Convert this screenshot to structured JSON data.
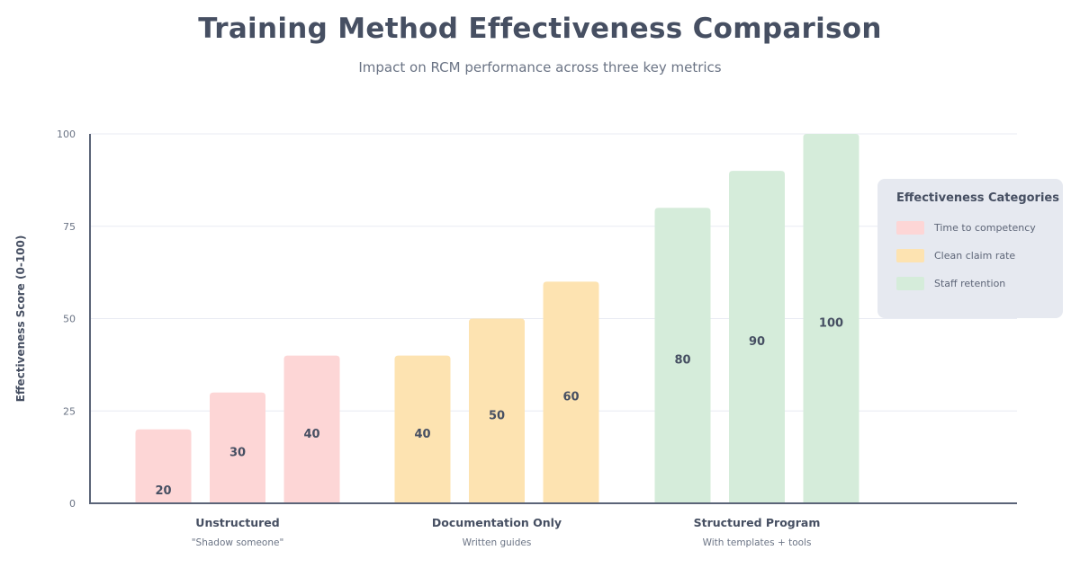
{
  "chart_data": {
    "type": "bar",
    "title": "Training Method Effectiveness Comparison",
    "subtitle": "Impact on RCM performance across three key metrics",
    "xlabel": "",
    "ylabel": "Effectiveness Score (0-100)",
    "ylim": [
      0,
      100
    ],
    "yticks": [
      "0",
      "25",
      "50",
      "75",
      "100"
    ],
    "ytick_values": [
      0,
      25,
      50,
      75,
      100
    ],
    "grid": true,
    "categories": [
      {
        "label": "Unstructured",
        "sublabel": "\"Shadow someone\"",
        "color": "#fdd6d6",
        "values": [
          20,
          30,
          40
        ]
      },
      {
        "label": "Documentation Only",
        "sublabel": "Written guides",
        "color": "#fde3b1",
        "values": [
          40,
          50,
          60
        ]
      },
      {
        "label": "Structured Program",
        "sublabel": "With templates + tools",
        "color": "#d5ecda",
        "values": [
          80,
          90,
          100
        ]
      }
    ],
    "series": [
      {
        "name": "Time to competency",
        "color": "#fdd6d6"
      },
      {
        "name": "Clean claim rate",
        "color": "#fde3b1"
      },
      {
        "name": "Staff retention",
        "color": "#d5ecda"
      }
    ],
    "legend": {
      "title": "Effectiveness Categories",
      "placement": "right"
    }
  }
}
